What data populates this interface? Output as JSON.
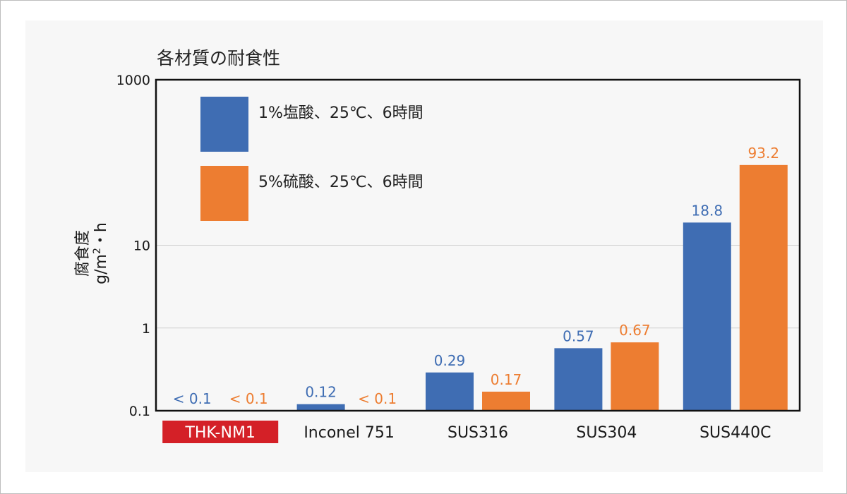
{
  "chart_data": {
    "type": "bar",
    "title": "各材質の耐食性",
    "ylabel": "腐食度",
    "ylabel_unit_base": "g/m",
    "ylabel_unit_sup": "2",
    "ylabel_unit_tail": "・h",
    "yscale": "log",
    "ylim": [
      0.1,
      1000
    ],
    "yticks": [
      0.1,
      1,
      10,
      1000
    ],
    "ytick_labels": [
      "0.1",
      "1",
      "10",
      "1000"
    ],
    "grid": true,
    "legend_position": "top-left",
    "categories": [
      "THK-NM1",
      "Inconel 751",
      "SUS316",
      "SUS304",
      "SUS440C"
    ],
    "highlight_category_index": 0,
    "highlight_color": "#d42027",
    "series": [
      {
        "name": "1%塩酸、25℃、6時間",
        "color": "#3f6db3",
        "values": [
          null,
          0.12,
          0.29,
          0.57,
          18.8
        ],
        "labels": [
          "< 0.1",
          "0.12",
          "0.29",
          "0.57",
          "18.8"
        ]
      },
      {
        "name": "5%硫酸、25℃、6時間",
        "color": "#ed7d31",
        "values": [
          null,
          null,
          0.17,
          0.67,
          93.2
        ],
        "labels": [
          "< 0.1",
          "< 0.1",
          "0.17",
          "0.67",
          "93.2"
        ]
      }
    ]
  }
}
